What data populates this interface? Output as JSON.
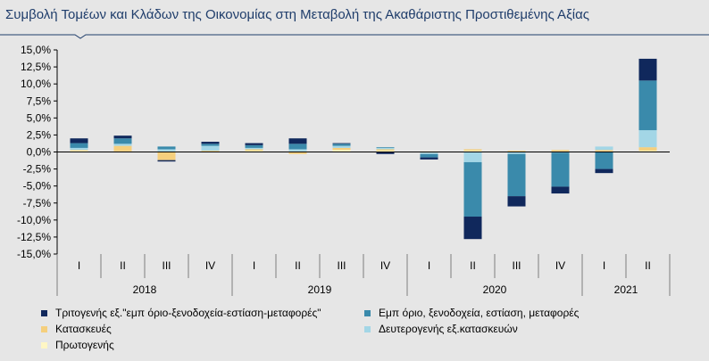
{
  "title": "Συμβολή Τομέων και Κλάδων της Οικονομίας στη Μεταβολή της Ακαθάριστης Προστιθεμένης Αξίας",
  "chart_data": {
    "type": "bar",
    "stacked": true,
    "title": "Συμβολή Τομέων και Κλάδων της Οικονομίας στη Μεταβολή της Ακαθάριστης Προστιθεμένης Αξίας",
    "categories": [
      "I",
      "II",
      "III",
      "IV",
      "I",
      "II",
      "III",
      "IV",
      "I",
      "II",
      "III",
      "IV",
      "I",
      "II"
    ],
    "years": [
      {
        "label": "2018",
        "span": 4
      },
      {
        "label": "2019",
        "span": 4
      },
      {
        "label": "2020",
        "span": 4
      },
      {
        "label": "2021",
        "span": 2
      }
    ],
    "ylim": [
      -15,
      15
    ],
    "yticks": [
      "15,0%",
      "12,5%",
      "10,0%",
      "7,5%",
      "5,0%",
      "2,5%",
      "0,0%",
      "-2,5%",
      "-5,0%",
      "-7,5%",
      "-10,0%",
      "-12,5%",
      "-15,0%"
    ],
    "ytick_values": [
      15,
      12.5,
      10,
      7.5,
      5,
      2.5,
      0,
      -2.5,
      -5,
      -7.5,
      -10,
      -12.5,
      -15
    ],
    "series": [
      {
        "name": "Πρωτογενής",
        "color": "#fff6c4",
        "values": [
          0.2,
          0.1,
          0.1,
          0.1,
          0.2,
          0.1,
          0.3,
          0.2,
          0.1,
          0.2,
          0.1,
          0.1,
          0.1,
          0.2
        ]
      },
      {
        "name": "Κατασκευές",
        "color": "#f5cf7d",
        "values": [
          0.1,
          0.8,
          -1.2,
          0.1,
          0.2,
          -0.3,
          0.3,
          0.2,
          -0.1,
          0.2,
          0.1,
          0.2,
          0.2,
          0.5
        ]
      },
      {
        "name": "Δευτερογενής εξ.κατασκευών",
        "color": "#a3d6e6",
        "values": [
          0.3,
          0.3,
          0.3,
          0.7,
          0.2,
          0.3,
          0.3,
          0.2,
          -0.2,
          -1.5,
          -0.3,
          -0.1,
          0.5,
          2.5
        ]
      },
      {
        "name": "Εμπόριο, ξενοδοχεία, εστίαση, μεταφορές",
        "color": "#3a8aab",
        "values": [
          0.7,
          0.8,
          0.4,
          0.3,
          0.4,
          0.8,
          0.3,
          0.1,
          -0.5,
          -8.0,
          -6.2,
          -5.0,
          -2.5,
          7.3
        ]
      },
      {
        "name": "Τριτογενής εξ.\"εμπόριο-ξενοδοχεία-εστίαση-μεταφορές\"",
        "color": "#10285c",
        "values": [
          0.7,
          0.4,
          -0.2,
          0.3,
          0.3,
          0.8,
          0.1,
          -0.3,
          -0.3,
          -3.3,
          -1.5,
          -1.0,
          -0.6,
          3.2
        ]
      }
    ],
    "legend": [
      {
        "name": "Τριτογενής εξ.\"εμπ όριο-ξενοδοχεία-εστίαση-μεταφορές\"",
        "color": "#10285c"
      },
      {
        "name": "Εμπ όριο, ξενοδοχεία, εστίαση, μεταφορές",
        "color": "#3a8aab"
      },
      {
        "name": "Κατασκευές",
        "color": "#f5cf7d"
      },
      {
        "name": "Δευτερογενής εξ.κατασκευών",
        "color": "#a3d6e6"
      },
      {
        "name": "Πρωτογενής",
        "color": "#fff6c4"
      }
    ],
    "legend_position": "bottom",
    "grid": false
  }
}
